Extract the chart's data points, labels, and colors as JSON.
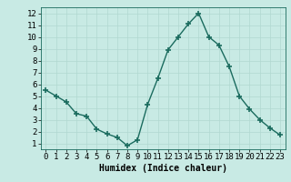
{
  "x": [
    0,
    1,
    2,
    3,
    4,
    5,
    6,
    7,
    8,
    9,
    10,
    11,
    12,
    13,
    14,
    15,
    16,
    17,
    18,
    19,
    20,
    21,
    22,
    23
  ],
  "y": [
    5.5,
    5.0,
    4.5,
    3.5,
    3.3,
    2.2,
    1.8,
    1.5,
    0.8,
    1.3,
    4.3,
    6.5,
    8.9,
    10.0,
    11.1,
    12.0,
    10.0,
    9.3,
    7.5,
    5.0,
    3.9,
    3.0,
    2.3,
    1.7
  ],
  "line_color": "#1a6b5e",
  "marker": "+",
  "marker_size": 4,
  "bg_color": "#c8eae4",
  "grid_color": "#b0d8d0",
  "xlabel": "Humidex (Indice chaleur)",
  "xlim": [
    -0.5,
    23.5
  ],
  "ylim": [
    0.5,
    12.5
  ],
  "yticks": [
    1,
    2,
    3,
    4,
    5,
    6,
    7,
    8,
    9,
    10,
    11,
    12
  ],
  "xticks": [
    0,
    1,
    2,
    3,
    4,
    5,
    6,
    7,
    8,
    9,
    10,
    11,
    12,
    13,
    14,
    15,
    16,
    17,
    18,
    19,
    20,
    21,
    22,
    23
  ],
  "xlabel_fontsize": 7,
  "tick_fontsize": 6.5,
  "linewidth": 1.0,
  "marker_linewidth": 1.2
}
